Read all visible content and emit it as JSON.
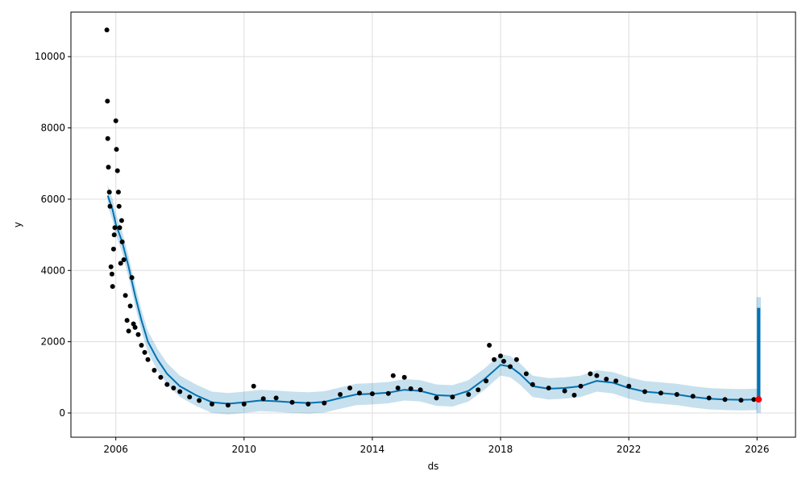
{
  "chart_data": {
    "type": "line",
    "xlabel": "ds",
    "ylabel": "y",
    "xlim": [
      2004.6,
      2027.2
    ],
    "ylim": [
      -680,
      11250
    ],
    "grid": true,
    "x_ticks": [
      2006,
      2010,
      2014,
      2018,
      2022,
      2026
    ],
    "x_tick_labels": [
      "2006",
      "2010",
      "2014",
      "2018",
      "2022",
      "2026"
    ],
    "y_ticks": [
      0,
      2000,
      4000,
      6000,
      8000,
      10000
    ],
    "y_tick_labels": [
      "0",
      "2000",
      "4000",
      "6000",
      "8000",
      "10000"
    ],
    "colors": {
      "observed": "#000000",
      "forecast": "#0072B2",
      "interval": "#0072B2",
      "grid": "#dddddd",
      "highlight": "#ff0000"
    },
    "series": [
      {
        "type": "forecast_trend",
        "x": [
          2005.75,
          2005.9,
          2006.0,
          2006.2,
          2006.4,
          2006.6,
          2006.8,
          2007.0,
          2007.3,
          2007.6,
          2008.0,
          2008.5,
          2009.0,
          2009.5,
          2010.0,
          2010.5,
          2011.0,
          2011.5,
          2012.0,
          2012.5,
          2013.0,
          2013.5,
          2014.0,
          2014.5,
          2015.0,
          2015.5,
          2016.0,
          2016.5,
          2017.0,
          2017.5,
          2018.0,
          2018.3,
          2018.6,
          2019.0,
          2019.5,
          2020.0,
          2020.5,
          2021.0,
          2021.5,
          2022.0,
          2022.5,
          2023.0,
          2023.5,
          2024.0,
          2024.5,
          2025.0,
          2025.5,
          2026.0
        ],
        "y": [
          6100,
          5700,
          5300,
          4800,
          4100,
          3300,
          2600,
          2000,
          1500,
          1100,
          750,
          500,
          300,
          260,
          300,
          350,
          330,
          300,
          280,
          310,
          420,
          520,
          540,
          570,
          650,
          620,
          500,
          480,
          620,
          950,
          1350,
          1300,
          1100,
          750,
          680,
          700,
          750,
          900,
          850,
          700,
          600,
          560,
          520,
          450,
          400,
          380,
          370,
          380
        ]
      },
      {
        "type": "observed",
        "x": [
          2005.72,
          2005.74,
          2005.75,
          2005.77,
          2005.8,
          2005.82,
          2005.85,
          2005.88,
          2005.9,
          2005.93,
          2005.95,
          2005.97,
          2006.0,
          2006.02,
          2006.05,
          2006.08,
          2006.1,
          2006.12,
          2006.15,
          2006.18,
          2006.2,
          2006.25,
          2006.3,
          2006.35,
          2006.4,
          2006.45,
          2006.5,
          2006.55,
          2006.6,
          2006.7,
          2006.8,
          2006.9,
          2007.0,
          2007.2,
          2007.4,
          2007.6,
          2007.8,
          2008.0,
          2008.3,
          2008.6,
          2009.0,
          2009.5,
          2010.0,
          2010.3,
          2010.6,
          2011.0,
          2011.5,
          2012.0,
          2012.5,
          2013.0,
          2013.3,
          2013.6,
          2014.0,
          2014.5,
          2014.65,
          2014.8,
          2015.0,
          2015.2,
          2015.5,
          2016.0,
          2016.5,
          2017.0,
          2017.3,
          2017.55,
          2017.65,
          2017.8,
          2018.0,
          2018.1,
          2018.3,
          2018.5,
          2018.8,
          2019.0,
          2019.5,
          2020.0,
          2020.3,
          2020.5,
          2020.8,
          2021.0,
          2021.3,
          2021.6,
          2022.0,
          2022.5,
          2023.0,
          2023.5,
          2024.0,
          2024.5,
          2025.0,
          2025.5,
          2025.9
        ],
        "y": [
          10750,
          8750,
          7700,
          6900,
          6200,
          5800,
          4100,
          3900,
          3550,
          4600,
          5000,
          5200,
          8200,
          7400,
          6800,
          6200,
          5800,
          5200,
          4200,
          5400,
          4800,
          4300,
          3300,
          2600,
          2300,
          3000,
          3800,
          2500,
          2400,
          2200,
          1900,
          1700,
          1500,
          1200,
          1000,
          800,
          700,
          600,
          450,
          350,
          250,
          220,
          250,
          750,
          400,
          420,
          300,
          250,
          280,
          520,
          700,
          560,
          540,
          550,
          1050,
          700,
          1000,
          680,
          650,
          420,
          450,
          520,
          650,
          900,
          1900,
          1500,
          1600,
          1450,
          1300,
          1500,
          1100,
          800,
          700,
          620,
          500,
          750,
          1100,
          1050,
          950,
          900,
          750,
          600,
          560,
          520,
          470,
          420,
          380,
          360,
          380
        ]
      },
      {
        "type": "forecast_spike",
        "x": [
          2025.98,
          2026.02,
          2026.05,
          2026.08,
          2026.12
        ],
        "y": [
          380,
          2950,
          2900,
          2880,
          2850
        ]
      }
    ]
  }
}
